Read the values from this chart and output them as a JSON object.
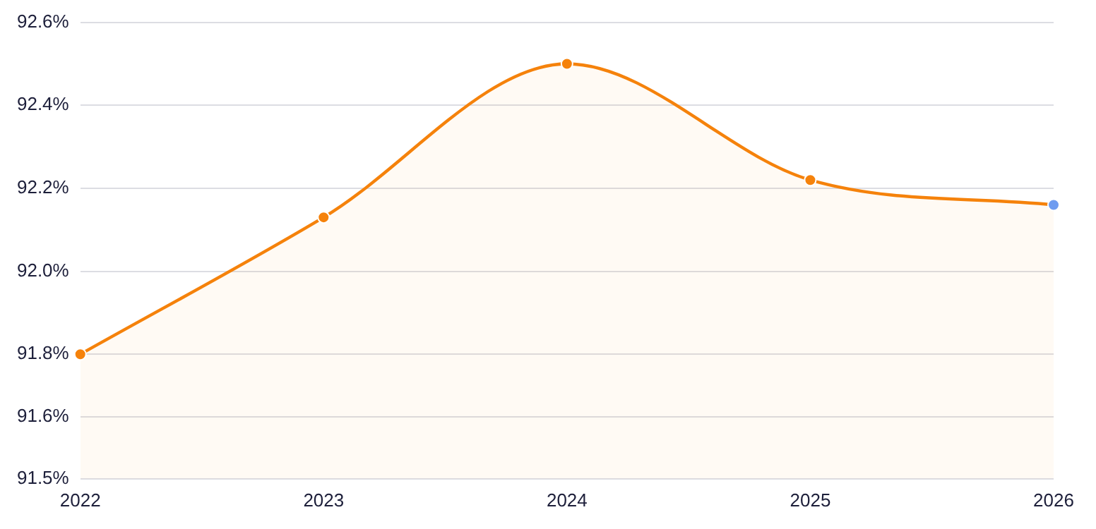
{
  "chart_data": {
    "type": "area",
    "categories": [
      "2022",
      "2023",
      "2024",
      "2025",
      "2026"
    ],
    "series": [
      {
        "color": "#f5820b",
        "colors": [
          "#f5820b",
          "#f5820b",
          "#f5820b",
          "#f5820b",
          "#6f9cf0"
        ],
        "values": [
          91.8,
          92.13,
          92.5,
          92.22,
          92.16
        ]
      }
    ],
    "ylim": [
      91.5,
      92.6
    ],
    "yticks": [
      {
        "value": 91.5,
        "label": "91.5%"
      },
      {
        "value": 91.65,
        "label": "91.6%"
      },
      {
        "value": 91.8,
        "label": "91.8%"
      },
      {
        "value": 92.0,
        "label": "92.0%"
      },
      {
        "value": 92.2,
        "label": "92.2%"
      },
      {
        "value": 92.4,
        "label": "92.4%"
      },
      {
        "value": 92.6,
        "label": "92.6%"
      }
    ],
    "grid": "y",
    "legend": false,
    "marker": "circle"
  }
}
